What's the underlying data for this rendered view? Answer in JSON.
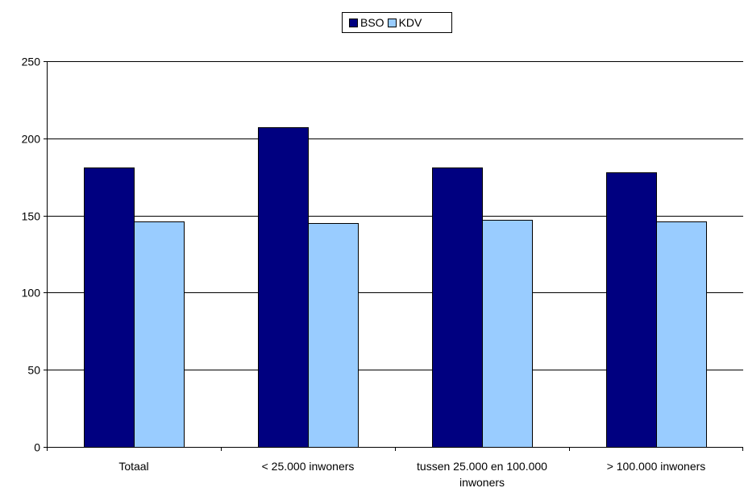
{
  "chart_data": {
    "type": "bar",
    "categories": [
      "Totaal",
      "< 25.000 inwoners",
      "tussen 25.000 en 100.000 inwoners",
      "> 100.000 inwoners"
    ],
    "category_lines": [
      [
        "Totaal"
      ],
      [
        "< 25.000 inwoners"
      ],
      [
        "tussen 25.000 en 100.000",
        "inwoners"
      ],
      [
        "> 100.000 inwoners"
      ]
    ],
    "series": [
      {
        "name": "BSO",
        "values": [
          181,
          207,
          181,
          178
        ],
        "color": "#000080"
      },
      {
        "name": "KDV",
        "values": [
          146,
          145,
          147,
          146
        ],
        "color": "#99CCFF"
      }
    ],
    "ylim": [
      0,
      250
    ],
    "yticks": [
      0,
      50,
      100,
      150,
      200,
      250
    ],
    "grid": true,
    "legend_position": "top-center",
    "title": "",
    "xlabel": "",
    "ylabel": ""
  }
}
